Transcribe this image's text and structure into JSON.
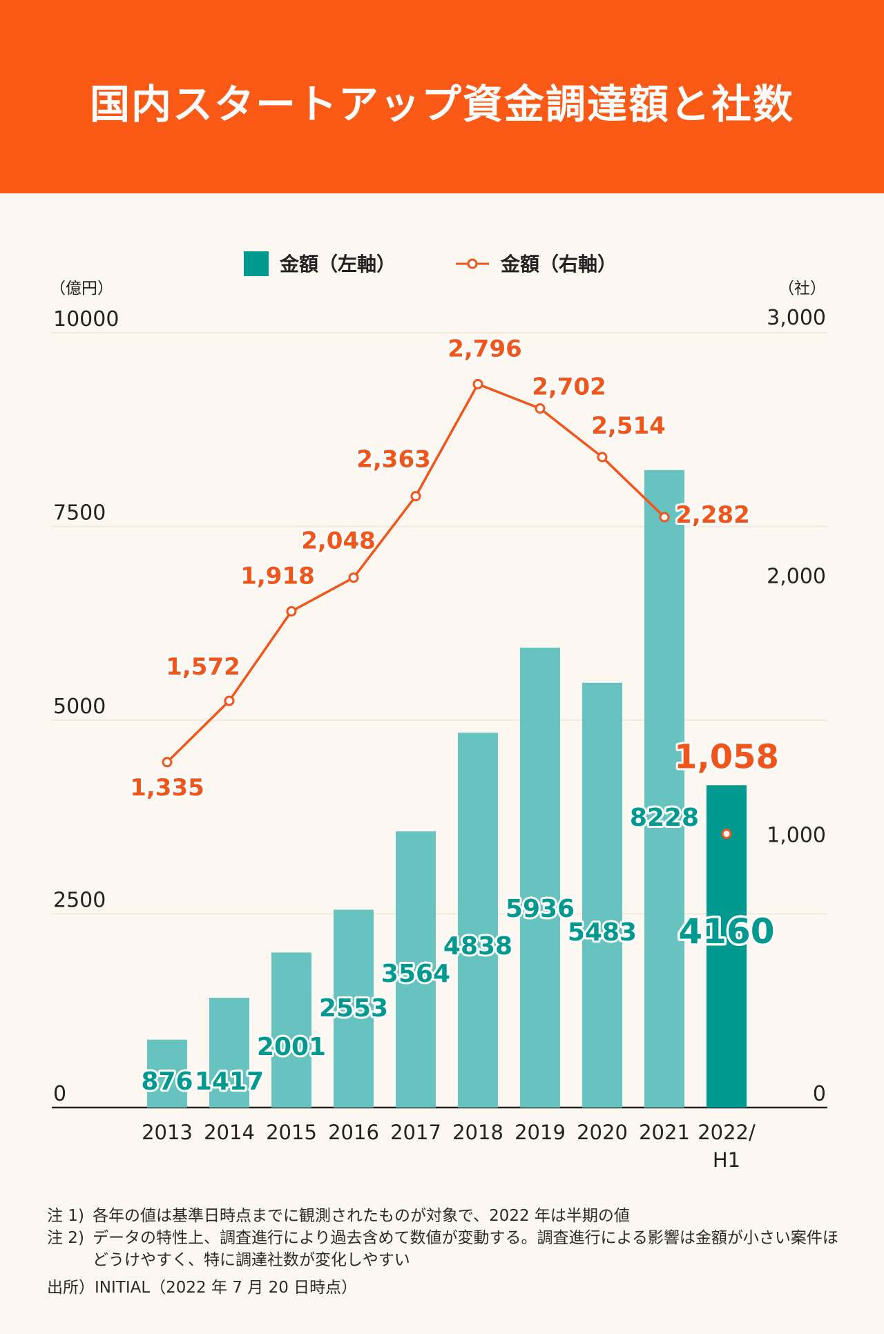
{
  "header": {
    "title": "国内スタートアップ資金調達額と社数"
  },
  "chart_data": {
    "type": "bar",
    "title": "国内スタートアップ資金調達額と社数",
    "categories": [
      "2013",
      "2014",
      "2015",
      "2016",
      "2017",
      "2018",
      "2019",
      "2020",
      "2021",
      "2022/\nH1"
    ],
    "series": [
      {
        "name": "金額（左軸）",
        "type": "bar",
        "axis": "left",
        "values": [
          876,
          1417,
          2001,
          2553,
          3564,
          4838,
          5936,
          5483,
          8228,
          4160
        ],
        "labels": [
          "876",
          "1417",
          "2001",
          "2553",
          "3564",
          "4838",
          "5936",
          "5483",
          "8228",
          "4160"
        ],
        "color": "#67c3bf",
        "highlight_color": "#009990"
      },
      {
        "name": "金額（右軸）",
        "type": "line",
        "axis": "right",
        "values": [
          1335,
          1572,
          1918,
          2048,
          2363,
          2796,
          2702,
          2514,
          2282,
          1058
        ],
        "labels": [
          "1,335",
          "1,572",
          "1,918",
          "2,048",
          "2,363",
          "2,796",
          "2,702",
          "2,514",
          "2,282",
          "1,058"
        ],
        "color": "#f0561c"
      }
    ],
    "left_axis": {
      "unit": "（億円）",
      "ticks": [
        "0",
        "2500",
        "5000",
        "7500",
        "10000"
      ],
      "range": [
        0,
        10000
      ]
    },
    "right_axis": {
      "unit": "（社）",
      "ticks": [
        "0",
        "1,000",
        "2,000",
        "3,000"
      ],
      "range": [
        0,
        3000
      ]
    },
    "legend": {
      "position": "top",
      "items": [
        "金額（左軸）",
        "金額（右軸）"
      ]
    }
  },
  "notes": [
    {
      "label": "注 1)",
      "text": "各年の値は基準日時点までに観測されたものが対象で、2022 年は半期の値"
    },
    {
      "label": "注 2)",
      "text": "データの特性上、調査進行により過去含めて数値が変動する。調査進行による影響は金額が小さい案件ほどうけやすく、特に調達社数が変化しやすい"
    }
  ],
  "source": "出所）INITIAL（2022 年 7 月 20 日時点）",
  "colors": {
    "header": "#fa5a16",
    "background": "#fcf7f0",
    "bar": "#67c3bf",
    "bar_highlight": "#009990",
    "line": "#f0561c"
  }
}
